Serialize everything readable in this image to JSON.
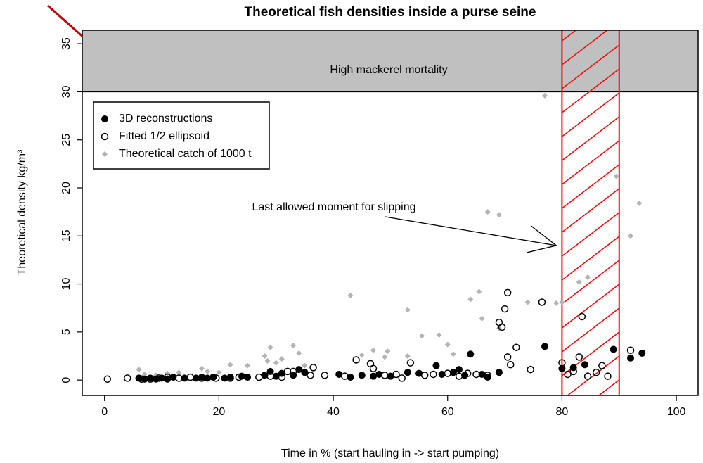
{
  "chart_data": {
    "type": "scatter",
    "title": "Theoretical fish densities inside a purse seine",
    "xlabel": "Time in % (start hauling in -> start pumping)",
    "ylabel": "Theoretical density kg/m³",
    "xlim": [
      -3.9,
      103.8
    ],
    "ylim": [
      -1.6,
      36.4
    ],
    "xticks": [
      0,
      20,
      40,
      60,
      80,
      100
    ],
    "yticks": [
      0,
      5,
      10,
      15,
      20,
      25,
      30,
      35
    ],
    "legend": "topleft",
    "mortality_threshold": 30,
    "mortality_label": "High mackerel mortality",
    "mortality_color": "#c0c0c0",
    "slipping_window": [
      80,
      90
    ],
    "slipping_color": "#ff0000",
    "annotation": {
      "text": "Last allowed moment for slipping",
      "x": 80,
      "y": 14
    },
    "series": [
      {
        "name": "3D reconstructions",
        "marker": "filled-circle",
        "color": "#000000",
        "x": [
          6,
          7,
          8,
          9,
          10,
          11,
          12,
          14,
          16,
          17,
          18,
          19,
          21,
          22,
          24,
          25,
          28,
          29,
          30,
          31,
          33,
          34,
          35,
          41,
          43,
          45,
          47,
          48,
          50,
          53,
          55,
          58,
          59,
          61,
          62,
          63,
          64,
          66,
          67,
          69,
          77,
          80,
          82,
          84,
          89,
          92,
          94
        ],
        "y": [
          0.2,
          0.1,
          0.2,
          0.1,
          0.2,
          0.1,
          0.3,
          0.2,
          0.2,
          0.3,
          0.2,
          0.3,
          0.2,
          0.3,
          0.4,
          0.3,
          0.5,
          0.9,
          0.4,
          0.7,
          0.5,
          1.1,
          0.8,
          0.6,
          0.3,
          0.5,
          0.4,
          0.6,
          0.4,
          0.8,
          0.7,
          1.5,
          0.6,
          0.8,
          1.1,
          0.5,
          2.7,
          0.6,
          0.3,
          0.8,
          3.5,
          1.2,
          1.3,
          1.6,
          3.2,
          2.3,
          2.8
        ]
      },
      {
        "name": "Fitted 1/2 ellipsoid",
        "marker": "open-circle",
        "color": "#000000",
        "x": [
          0.5,
          4,
          6.5,
          8,
          9.5,
          11,
          13,
          15,
          17,
          19.5,
          22,
          23.5,
          27,
          29,
          31,
          32,
          33,
          36,
          36.5,
          38.5,
          42,
          44,
          46.5,
          47,
          49,
          51,
          52,
          53.5,
          56,
          57.5,
          60,
          62,
          63.5,
          65,
          67,
          69,
          69.5,
          70,
          70.5,
          70.5,
          71,
          72,
          74.5,
          76.5,
          80,
          81,
          82,
          83,
          83.5,
          84.5,
          86,
          87,
          88,
          92
        ],
        "y": [
          0.1,
          0.2,
          0.1,
          0.1,
          0.2,
          0.3,
          0.2,
          0.3,
          0.2,
          0.2,
          0.2,
          0.3,
          0.3,
          0.4,
          0.3,
          0.9,
          0.9,
          0.5,
          1.3,
          0.5,
          0.4,
          2.1,
          1.7,
          1.2,
          0.5,
          0.6,
          0.2,
          1.8,
          0.5,
          0.6,
          0.7,
          0.4,
          0.7,
          0.6,
          0.5,
          6.0,
          5.5,
          7.4,
          9.1,
          2.4,
          1.6,
          3.4,
          1.1,
          8.1,
          1.8,
          0.6,
          0.9,
          2.4,
          6.6,
          0.4,
          0.8,
          1.5,
          0.4,
          3.1
        ]
      },
      {
        "name": "Theoretical catch of 1000 t",
        "marker": "diamond",
        "color": "#b4b4b4",
        "x": [
          6,
          7,
          9,
          11,
          13,
          17,
          18,
          20,
          22,
          25,
          28,
          28.5,
          29,
          30,
          31,
          33,
          34,
          35,
          43,
          45,
          47,
          49,
          49.5,
          53,
          53,
          55.5,
          58.5,
          60,
          61,
          64,
          65.5,
          66,
          67,
          69,
          69,
          74,
          77,
          79,
          80,
          83,
          84.5,
          89.5,
          92,
          93.5
        ],
        "y": [
          1.1,
          0.6,
          0.5,
          0.7,
          0.8,
          1.2,
          0.9,
          0.8,
          1.6,
          1.5,
          2.5,
          2.0,
          3.4,
          1.8,
          2.2,
          3.6,
          2.8,
          1.5,
          8.8,
          2.6,
          3.1,
          2.4,
          3.0,
          7.3,
          2.5,
          4.6,
          4.7,
          3.7,
          2.7,
          8.4,
          9.2,
          6.4,
          17.5,
          17.2,
          5.4,
          8.1,
          29.6,
          8.0,
          8.1,
          10.2,
          10.7,
          21.2,
          15.0,
          18.4
        ]
      }
    ]
  }
}
